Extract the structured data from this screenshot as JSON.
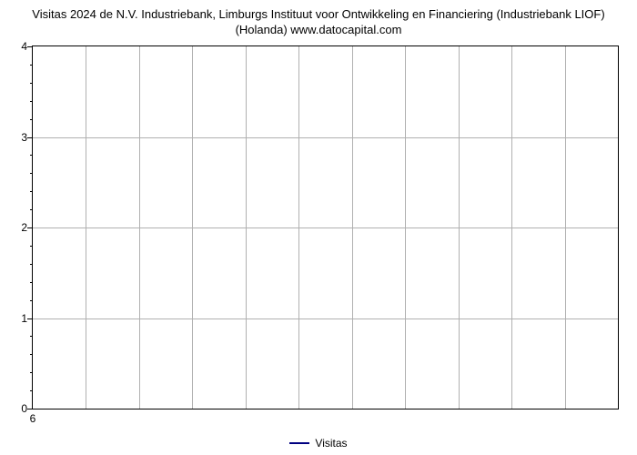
{
  "chart": {
    "type": "line",
    "title": "Visitas 2024 de N.V. Industriebank, Limburgs Instituut voor Ontwikkeling en Financiering (Industriebank LIOF) (Holanda) www.datocapital.com",
    "title_fontsize": 13,
    "title_color": "#000000",
    "background_color": "#ffffff",
    "border_color": "#000000",
    "grid_color": "#b0b0b0",
    "yaxis": {
      "min": 0,
      "max": 4,
      "major_ticks": [
        0,
        1,
        2,
        3,
        4
      ],
      "minor_per_interval": 4,
      "label_fontsize": 12
    },
    "xaxis": {
      "ticks": [
        "6"
      ],
      "label_fontsize": 12,
      "vertical_gridlines": 10
    },
    "series": [
      {
        "name": "Visitas",
        "color": "#000080",
        "line_width": 2,
        "data": []
      }
    ],
    "legend": {
      "position": "bottom-center",
      "fontsize": 12,
      "items": [
        {
          "label": "Visitas",
          "color": "#000080"
        }
      ]
    }
  }
}
